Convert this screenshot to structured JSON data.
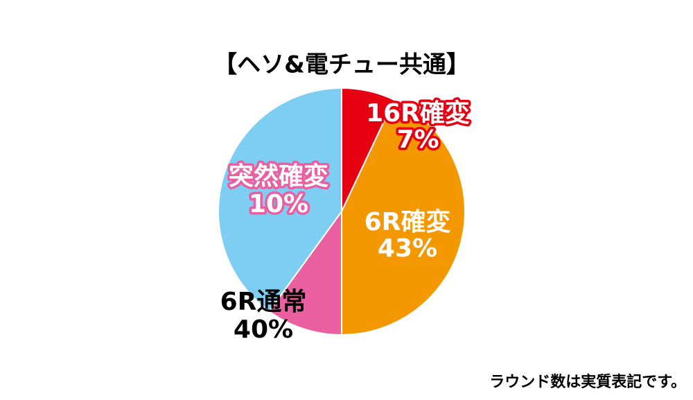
{
  "chart_data": {
    "type": "pie",
    "title": "【ヘソ&電チュー共通】",
    "categories": [
      "16R確変",
      "6R確変",
      "突然確変",
      "6R通常"
    ],
    "values": [
      7,
      43,
      10,
      40
    ],
    "value_labels": [
      "7%",
      "43%",
      "10%",
      "40%"
    ],
    "colors": [
      "#e60012",
      "#f39800",
      "#e95fa0",
      "#7ecef4"
    ],
    "note": "ラウンド数は実質表記です。"
  }
}
